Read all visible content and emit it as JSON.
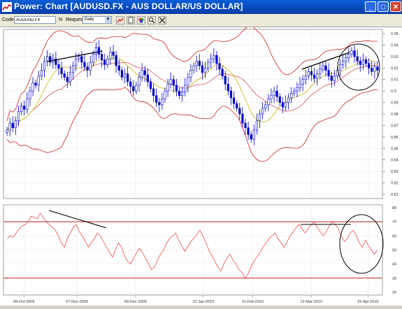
{
  "window": {
    "title": "Power: Chart [AUDUSD.FX - AUS DOLLAR/US DOLLAR]",
    "controls": {
      "minimize": "_",
      "maximize": "□",
      "close": "✕"
    }
  },
  "toolbar": {
    "code_label": "Code",
    "code_value": "AUDUSD.FX",
    "n_label": "N",
    "request_label": "Request",
    "request_value": "Daily",
    "icons": [
      "chart-type-icon",
      "new-page-icon",
      "color-palette-icon",
      "zoom-icon",
      "tools-icon"
    ]
  },
  "price_axis": {
    "ticks": [
      "0.95",
      "0.94",
      "0.93",
      "0.92",
      "0.91",
      "0.9",
      "0.89",
      "0.88",
      "0.87",
      "0.86",
      "0.85",
      "0.84",
      "0.83",
      "0.82",
      "0.81"
    ]
  },
  "rsi_axis": {
    "ticks": [
      "80",
      "70",
      "60",
      "50",
      "40",
      "30",
      "20"
    ]
  },
  "date_axis": {
    "ticks": [
      "09-Oct-2009",
      "07-Nov-2009",
      "09-Dec-2009",
      "15-Jan-2010",
      "11-Feb-2010",
      "15-Mar-2010",
      "15-Apr-2010"
    ]
  },
  "chart_data": {
    "type": "candlestick",
    "colors": {
      "candle": "#0000cc",
      "bollinger": "#cc2222",
      "moving_average": "#c8b400",
      "rsi": "#ee3333",
      "trendline": "#000000",
      "rsi_level": "#aa0000"
    },
    "price_range": [
      0.81,
      0.95
    ],
    "rsi_range": [
      20,
      80
    ],
    "rsi_levels": [
      70,
      30
    ],
    "date_range": [
      "2009-09-29",
      "2010-04-21"
    ],
    "closes": [
      0.866,
      0.872,
      0.868,
      0.874,
      0.882,
      0.887,
      0.884,
      0.893,
      0.9,
      0.907,
      0.905,
      0.913,
      0.918,
      0.926,
      0.93,
      0.925,
      0.928,
      0.923,
      0.92,
      0.915,
      0.912,
      0.908,
      0.916,
      0.922,
      0.928,
      0.93,
      0.925,
      0.921,
      0.918,
      0.925,
      0.932,
      0.938,
      0.932,
      0.927,
      0.923,
      0.928,
      0.934,
      0.931,
      0.922,
      0.918,
      0.912,
      0.915,
      0.908,
      0.904,
      0.9,
      0.905,
      0.912,
      0.918,
      0.914,
      0.908,
      0.902,
      0.896,
      0.89,
      0.888,
      0.893,
      0.9,
      0.906,
      0.91,
      0.905,
      0.9,
      0.896,
      0.899,
      0.905,
      0.912,
      0.918,
      0.922,
      0.926,
      0.922,
      0.916,
      0.92,
      0.925,
      0.928,
      0.931,
      0.924,
      0.919,
      0.913,
      0.906,
      0.9,
      0.894,
      0.889,
      0.885,
      0.88,
      0.872,
      0.868,
      0.862,
      0.858,
      0.866,
      0.874,
      0.88,
      0.885,
      0.888,
      0.893,
      0.896,
      0.9,
      0.895,
      0.89,
      0.886,
      0.89,
      0.894,
      0.898,
      0.9,
      0.903,
      0.906,
      0.91,
      0.913,
      0.917,
      0.914,
      0.911,
      0.915,
      0.919,
      0.922,
      0.918,
      0.913,
      0.909,
      0.913,
      0.918,
      0.923,
      0.926,
      0.929,
      0.932,
      0.935,
      0.93,
      0.926,
      0.923,
      0.927,
      0.924,
      0.92,
      0.917,
      0.921,
      0.918
    ],
    "rsi": [
      58,
      60,
      59,
      62,
      65,
      67,
      68,
      70,
      74,
      73,
      72,
      76,
      73,
      70,
      68,
      66,
      64,
      60,
      55,
      52,
      58,
      62,
      66,
      68,
      63,
      60,
      56,
      52,
      55,
      58,
      62,
      60,
      56,
      52,
      48,
      45,
      50,
      55,
      52,
      46,
      42,
      40,
      44,
      48,
      51,
      48,
      44,
      40,
      36,
      38,
      43,
      47,
      50,
      55,
      58,
      60,
      62,
      57,
      53,
      49,
      52,
      56,
      58,
      61,
      64,
      60,
      55,
      50,
      46,
      42,
      38,
      35,
      40,
      44,
      47,
      43,
      40,
      36,
      34,
      30,
      33,
      38,
      42,
      45,
      48,
      52,
      55,
      58,
      60,
      62,
      58,
      55,
      52,
      56,
      60,
      63,
      66,
      68,
      65,
      62,
      65,
      68,
      70,
      66,
      63,
      60,
      63,
      67,
      70,
      68,
      65,
      60,
      56,
      58,
      62,
      64,
      60,
      55,
      52,
      57,
      53,
      50,
      47,
      50
    ]
  }
}
